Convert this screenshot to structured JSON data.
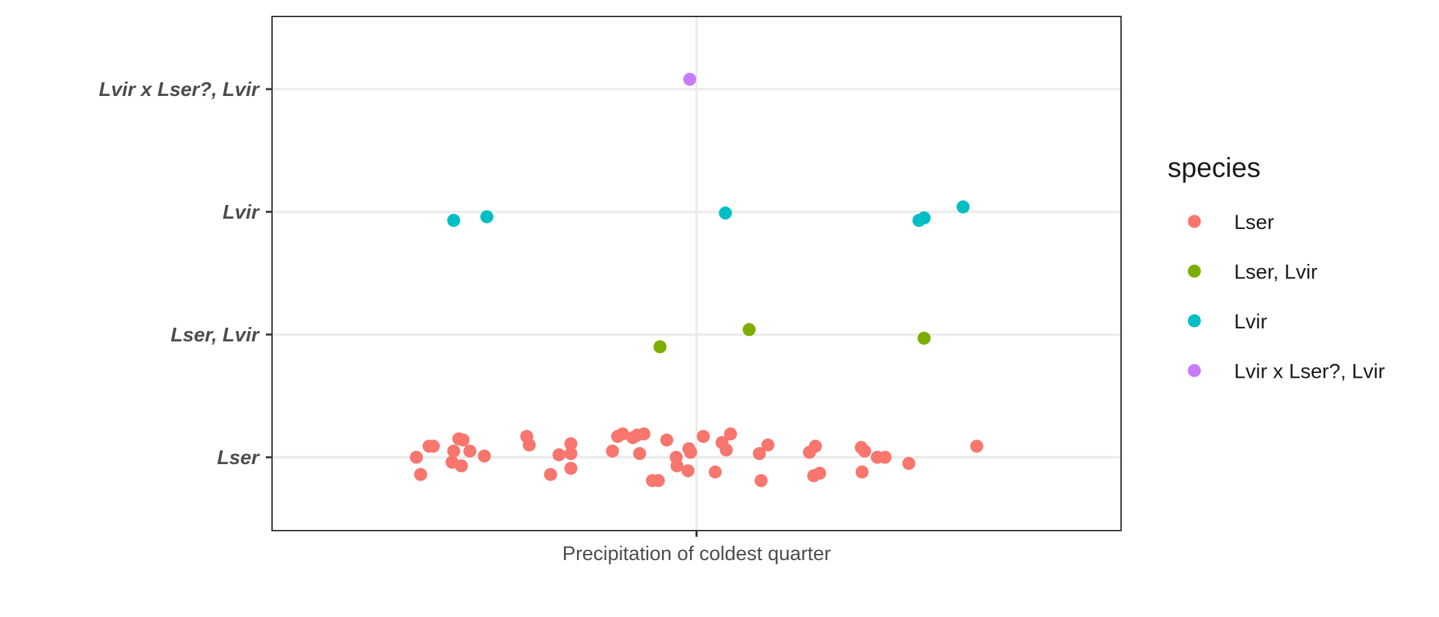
{
  "chart_data": {
    "type": "scatter",
    "title": "",
    "xlabel": "",
    "ylabel": "",
    "x_tick_labels": [
      "Precipitation of coldest quarter"
    ],
    "categories": [
      "Lser",
      "Lser, Lvir",
      "Lvir",
      "Lvir x Lser?, Lvir"
    ],
    "x_range": [
      -0.5,
      0.5
    ],
    "grid": true,
    "legend": {
      "title": "species",
      "position": "right",
      "entries": [
        {
          "label": "Lser",
          "color": "#F8766D"
        },
        {
          "label": "Lser, Lvir",
          "color": "#7CAE00"
        },
        {
          "label": "Lvir",
          "color": "#00BFC4"
        },
        {
          "label": "Lvir x Lser?, Lvir",
          "color": "#C77CFF"
        }
      ]
    },
    "series": [
      {
        "name": "Lvir x Lser?, Lvir",
        "points": [
          [
            -0.008,
            4.08
          ]
        ]
      },
      {
        "name": "Lvir",
        "points": [
          [
            -0.286,
            2.93
          ],
          [
            -0.247,
            2.96
          ],
          [
            0.034,
            2.99
          ],
          [
            0.262,
            2.93
          ],
          [
            0.268,
            2.95
          ],
          [
            0.314,
            3.04
          ]
        ]
      },
      {
        "name": "Lser, Lvir",
        "points": [
          [
            -0.043,
            1.9
          ],
          [
            0.062,
            2.04
          ],
          [
            0.268,
            1.97
          ]
        ]
      },
      {
        "name": "Lser",
        "points": [
          [
            -0.33,
            1.0
          ],
          [
            -0.325,
            0.86
          ],
          [
            -0.315,
            1.09
          ],
          [
            -0.31,
            1.09
          ],
          [
            -0.288,
            0.96
          ],
          [
            -0.286,
            1.05
          ],
          [
            -0.28,
            1.15
          ],
          [
            -0.277,
            0.93
          ],
          [
            -0.275,
            1.14
          ],
          [
            -0.267,
            1.05
          ],
          [
            -0.25,
            1.01
          ],
          [
            -0.2,
            1.17
          ],
          [
            -0.197,
            1.1
          ],
          [
            -0.172,
            0.86
          ],
          [
            -0.162,
            1.02
          ],
          [
            -0.148,
            1.11
          ],
          [
            -0.148,
            1.03
          ],
          [
            -0.148,
            0.91
          ],
          [
            -0.099,
            1.05
          ],
          [
            -0.093,
            1.17
          ],
          [
            -0.087,
            1.19
          ],
          [
            -0.075,
            1.16
          ],
          [
            -0.07,
            1.18
          ],
          [
            -0.067,
            1.03
          ],
          [
            -0.062,
            1.19
          ],
          [
            -0.052,
            0.81
          ],
          [
            -0.045,
            0.81
          ],
          [
            -0.035,
            1.14
          ],
          [
            -0.024,
            1.0
          ],
          [
            -0.023,
            0.93
          ],
          [
            -0.01,
            0.89
          ],
          [
            -0.009,
            1.07
          ],
          [
            -0.007,
            1.04
          ],
          [
            0.008,
            1.17
          ],
          [
            0.022,
            0.88
          ],
          [
            0.03,
            1.12
          ],
          [
            0.035,
            1.06
          ],
          [
            0.04,
            1.19
          ],
          [
            0.074,
            1.03
          ],
          [
            0.076,
            0.81
          ],
          [
            0.084,
            1.1
          ],
          [
            0.133,
            1.04
          ],
          [
            0.138,
            0.85
          ],
          [
            0.14,
            1.09
          ],
          [
            0.145,
            0.87
          ],
          [
            0.195,
            0.88
          ],
          [
            0.194,
            1.08
          ],
          [
            0.198,
            1.05
          ],
          [
            0.213,
            1.0
          ],
          [
            0.222,
            1.0
          ],
          [
            0.25,
            0.95
          ],
          [
            0.33,
            1.09
          ]
        ]
      }
    ]
  }
}
